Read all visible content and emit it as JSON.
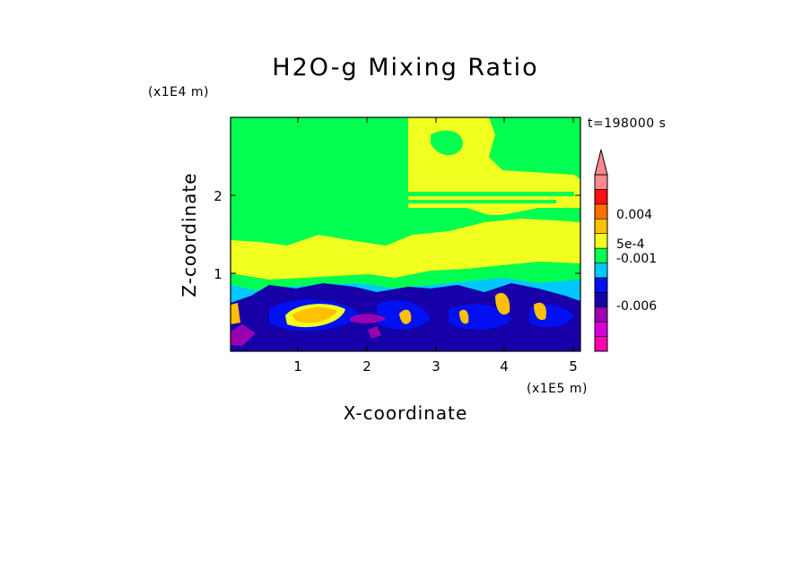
{
  "chart_data": {
    "type": "contour",
    "title": "H2O-g Mixing Ratio",
    "xlabel": "X-coordinate",
    "ylabel": "Z-coordinate",
    "x_unit": "(x1E5 m)",
    "y_unit": "(x1E4 m)",
    "time_label": "t=198000 s",
    "xlim": [
      0.0,
      5.1
    ],
    "ylim": [
      0.0,
      2.95
    ],
    "x_ticks": [
      "1",
      "2",
      "3",
      "4",
      "5"
    ],
    "y_ticks": [
      "1",
      "2"
    ],
    "grid": false,
    "colorbar": {
      "position": "right",
      "labels": [
        "0.004",
        "5e-4",
        "-0.001",
        "-0.006"
      ],
      "colors": [
        "#ff00b0",
        "#d800d8",
        "#9b00b0",
        "#1800a8",
        "#0010f0",
        "#00c8ff",
        "#00ff50",
        "#f0ff20",
        "#ffc000",
        "#ff7000",
        "#ff1010",
        "#ff8890"
      ]
    }
  }
}
